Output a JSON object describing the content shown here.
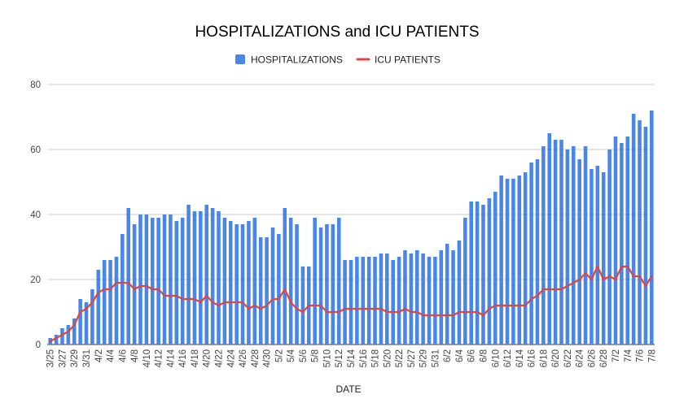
{
  "chart_data": {
    "type": "bar",
    "title": "HOSPITALIZATIONS and ICU PATIENTS",
    "xlabel": "DATE",
    "ylabel": "",
    "ylim": [
      0,
      80
    ],
    "yticks": [
      0,
      20,
      40,
      60,
      80
    ],
    "grid": true,
    "legend_position": "top-center",
    "colors": {
      "hospitalizations": "#4a86e8",
      "icu": "#e0463b",
      "grid": "#cccccc",
      "baseline": "#333333"
    },
    "categories": [
      "3/25",
      "3/26",
      "3/27",
      "3/28",
      "3/29",
      "3/30",
      "3/31",
      "4/1",
      "4/2",
      "4/3",
      "4/4",
      "4/5",
      "4/6",
      "4/7",
      "4/8",
      "4/9",
      "4/10",
      "4/11",
      "4/12",
      "4/13",
      "4/14",
      "4/15",
      "4/16",
      "4/17",
      "4/18",
      "4/19",
      "4/20",
      "4/21",
      "4/22",
      "4/23",
      "4/24",
      "4/25",
      "4/26",
      "4/27",
      "4/28",
      "4/29",
      "4/30",
      "5/1",
      "5/2",
      "5/3",
      "5/4",
      "5/5",
      "5/6",
      "5/7",
      "5/8",
      "5/9",
      "5/10",
      "5/11",
      "5/12",
      "5/13",
      "5/14",
      "5/15",
      "5/16",
      "5/17",
      "5/18",
      "5/19",
      "5/20",
      "5/21",
      "5/22",
      "5/26",
      "5/27",
      "5/28",
      "5/29",
      "5/30",
      "5/31",
      "6/1",
      "6/2",
      "6/3",
      "6/4",
      "6/5",
      "6/6",
      "6/7",
      "6/8",
      "6/9",
      "6/10",
      "6/11",
      "6/12",
      "6/13",
      "6/14",
      "6/15",
      "6/16",
      "6/17",
      "6/18",
      "6/19",
      "6/20",
      "6/21",
      "6/22",
      "6/23",
      "6/24",
      "6/25",
      "6/26",
      "6/27",
      "6/28",
      "6/29",
      "7/2",
      "7/3",
      "7/4",
      "7/5",
      "7/6",
      "7/7",
      "7/8"
    ],
    "series": [
      {
        "name": "HOSPITALIZATIONS",
        "type": "bar",
        "values": [
          2,
          3,
          5,
          6,
          8,
          14,
          13,
          17,
          23,
          26,
          26,
          27,
          34,
          42,
          37,
          40,
          40,
          39,
          39,
          40,
          40,
          38,
          39,
          43,
          41,
          41,
          43,
          42,
          41,
          39,
          38,
          37,
          37,
          38,
          39,
          33,
          33,
          36,
          34,
          42,
          39,
          37,
          24,
          24,
          39,
          36,
          37,
          37,
          39,
          26,
          26,
          27,
          27,
          27,
          27,
          28,
          28,
          26,
          27,
          29,
          28,
          29,
          28,
          27,
          27,
          29,
          31,
          29,
          32,
          39,
          44,
          44,
          43,
          45,
          47,
          52,
          51,
          51,
          52,
          53,
          56,
          57,
          61,
          65,
          63,
          63,
          60,
          61,
          57,
          61,
          54,
          55,
          53,
          60,
          64,
          62,
          64,
          71,
          69,
          67,
          72
        ]
      },
      {
        "name": "ICU PATIENTS",
        "type": "line",
        "values": [
          1,
          2,
          3,
          4,
          6,
          10,
          11,
          13,
          16,
          17,
          17,
          19,
          19,
          19,
          17,
          18,
          18,
          17,
          17,
          15,
          15,
          15,
          14,
          14,
          14,
          13,
          15,
          13,
          12,
          13,
          13,
          13,
          13,
          11,
          12,
          11,
          12,
          14,
          14,
          17,
          13,
          11,
          10,
          12,
          12,
          12,
          10,
          10,
          10,
          11,
          11,
          11,
          11,
          11,
          11,
          11,
          10,
          10,
          10,
          11,
          10,
          10,
          9,
          9,
          9,
          9,
          9,
          9,
          10,
          10,
          10,
          10,
          9,
          11,
          12,
          12,
          12,
          12,
          12,
          12,
          14,
          15,
          17,
          17,
          17,
          17,
          18,
          19,
          20,
          22,
          20,
          24,
          20,
          21,
          20,
          24,
          24,
          21,
          21,
          18,
          21
        ]
      }
    ],
    "x_tick_labels": [
      "3/25",
      "3/27",
      "3/29",
      "3/31",
      "4/2",
      "4/4",
      "4/6",
      "4/8",
      "4/10",
      "4/12",
      "4/14",
      "4/16",
      "4/18",
      "4/20",
      "4/22",
      "4/24",
      "4/26",
      "4/28",
      "4/30",
      "5/2",
      "5/4",
      "5/6",
      "5/8",
      "5/10",
      "5/12",
      "5/14",
      "5/16",
      "5/18",
      "5/20",
      "5/22",
      "5/27",
      "5/29",
      "5/31",
      "6/2",
      "6/4",
      "6/6",
      "6/8",
      "6/10",
      "6/12",
      "6/14",
      "6/16",
      "6/18",
      "6/20",
      "6/22",
      "6/24",
      "6/26",
      "6/28",
      "7/2",
      "7/4",
      "7/6",
      "7/8"
    ]
  }
}
